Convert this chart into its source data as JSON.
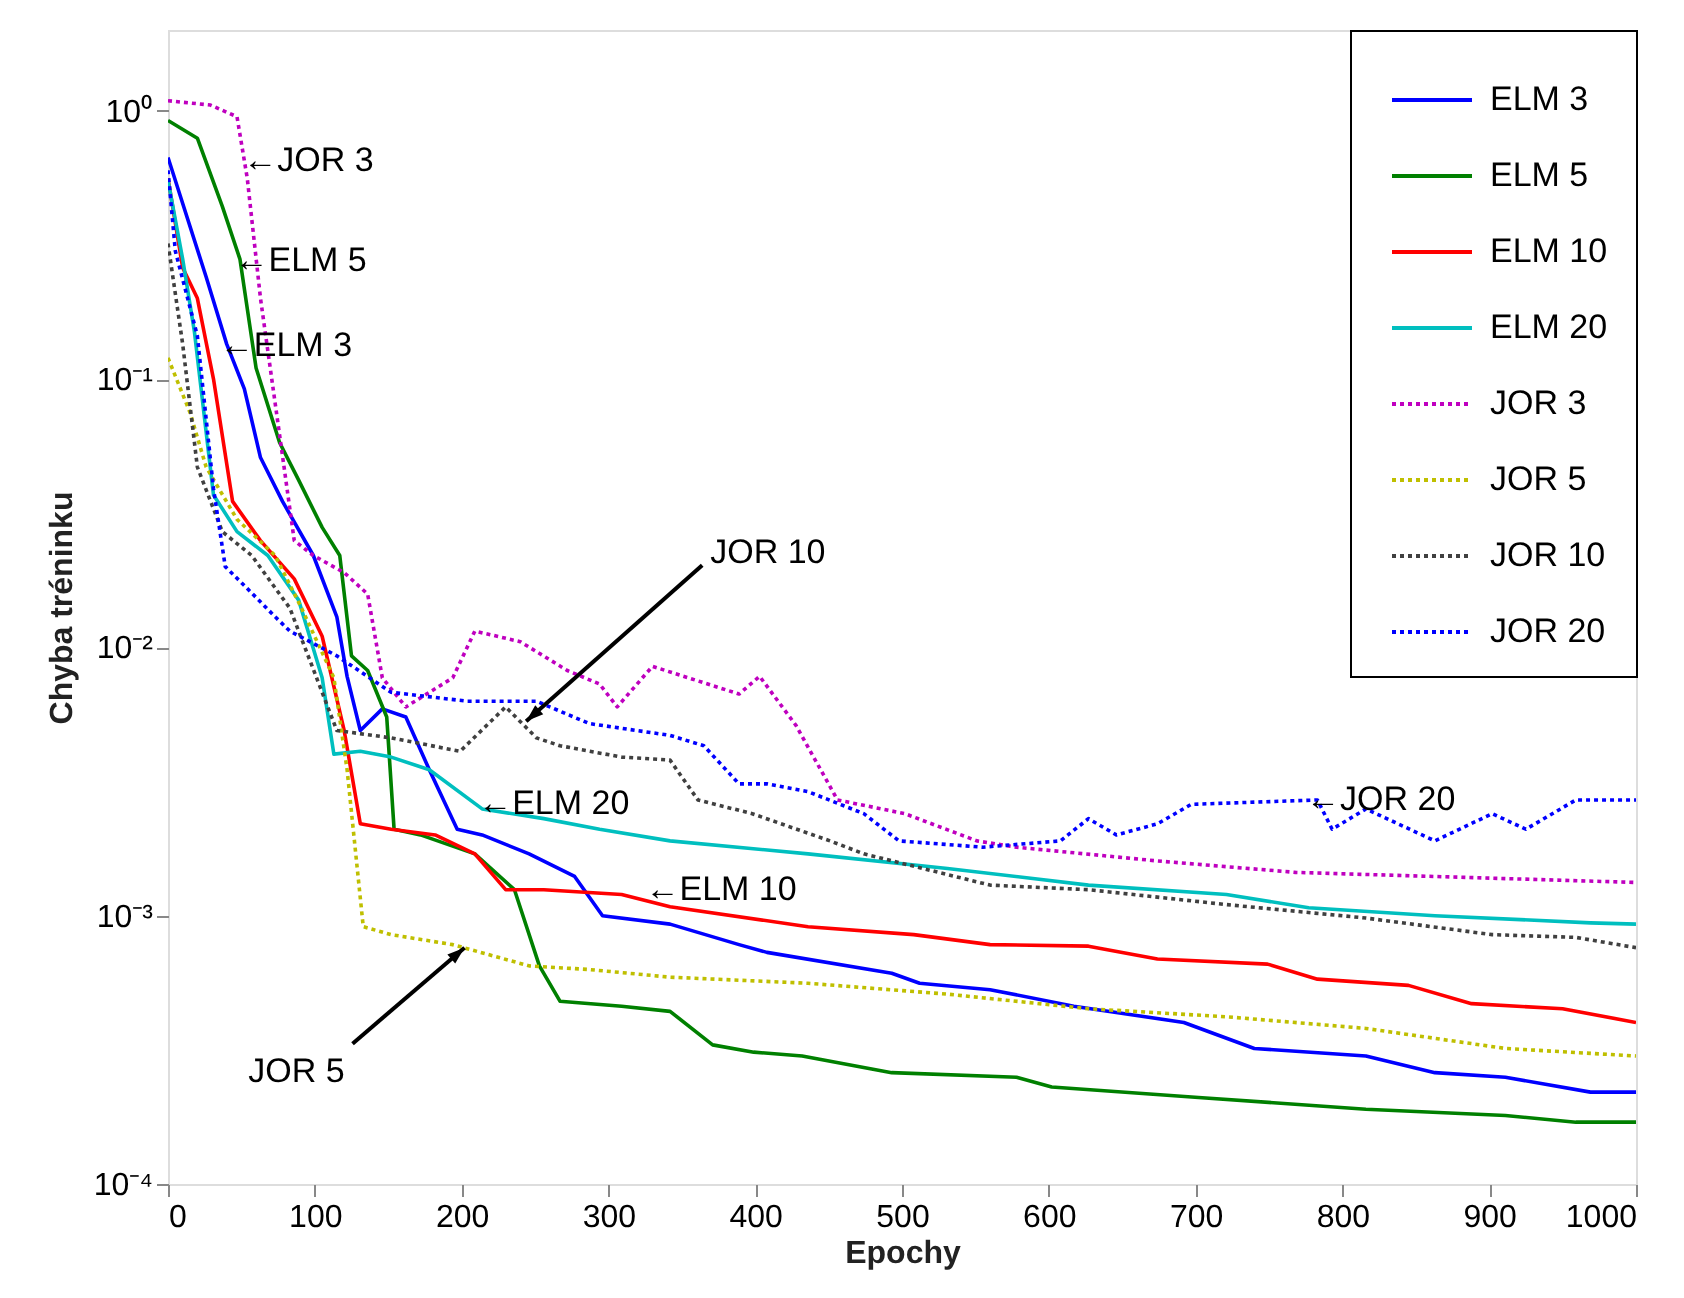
{
  "chart_data": {
    "type": "line",
    "xlabel": "Epochy",
    "ylabel": "Chyba tréninku",
    "xlim": [
      0,
      1000
    ],
    "xticks": [
      0,
      100,
      200,
      300,
      400,
      500,
      600,
      700,
      800,
      900,
      {
        "value": 1000,
        "label": "1000"
      }
    ],
    "ylim": [
      0.0001,
      2
    ],
    "log": true,
    "yticks": [
      {
        "value": 0.0001,
        "label": "10⁻⁴"
      },
      {
        "value": 0.001,
        "label": "10⁻³"
      },
      {
        "value": 0.01,
        "label": "10⁻²"
      },
      {
        "value": 0.1,
        "label": "10⁻¹"
      },
      {
        "value": 1,
        "label": "10⁰"
      }
    ],
    "legend": "top right",
    "grid": false,
    "series": [
      {
        "name": "ELM 3",
        "color": "#0000ff",
        "line_style": "solid",
        "x": [
          0,
          26,
          40,
          52,
          63,
          78,
          99,
          115,
          122,
          131,
          146,
          162,
          178,
          197,
          214,
          246,
          277,
          296,
          342,
          389,
          408,
          493,
          512,
          560,
          617,
          692,
          740,
          816,
          863,
          911,
          969,
          1000
        ],
        "values": [
          0.67,
          0.24,
          0.135,
          0.092,
          0.051,
          0.035,
          0.022,
          0.013,
          0.0078,
          0.0049,
          0.0059,
          0.0055,
          0.0035,
          0.0021,
          0.002,
          0.0017,
          0.0014,
          0.001,
          0.00093,
          0.00078,
          0.00073,
          0.00061,
          0.00056,
          0.00053,
          0.00046,
          0.0004,
          0.00032,
          0.0003,
          0.00026,
          0.00025,
          0.00022,
          0.00022
        ]
      },
      {
        "name": "ELM 5",
        "color": "#008000",
        "line_style": "solid",
        "x": [
          0,
          20,
          37,
          49,
          60,
          76,
          89,
          105,
          117,
          125,
          136,
          149,
          154,
          172,
          209,
          236,
          253,
          267,
          309,
          342,
          371,
          399,
          432,
          493,
          578,
          602,
          702,
          816,
          911,
          959,
          1000
        ],
        "values": [
          0.92,
          0.79,
          0.44,
          0.28,
          0.11,
          0.058,
          0.042,
          0.028,
          0.022,
          0.0093,
          0.0082,
          0.0055,
          0.0021,
          0.002,
          0.0017,
          0.00125,
          0.00065,
          0.00048,
          0.00046,
          0.00044,
          0.00033,
          0.00031,
          0.0003,
          0.00026,
          0.00025,
          0.00023,
          0.00021,
          0.00019,
          0.00018,
          0.00017,
          0.00017
        ]
      },
      {
        "name": "ELM 10",
        "color": "#ff0000",
        "line_style": "solid",
        "x": [
          0,
          10,
          20,
          31,
          44,
          63,
          86,
          105,
          120,
          131,
          152,
          182,
          209,
          230,
          256,
          309,
          342,
          436,
          508,
          560,
          627,
          674,
          749,
          783,
          845,
          888,
          950,
          1000
        ],
        "values": [
          0.56,
          0.26,
          0.2,
          0.1,
          0.035,
          0.025,
          0.018,
          0.011,
          0.0049,
          0.0022,
          0.0021,
          0.002,
          0.0017,
          0.00125,
          0.00125,
          0.0012,
          0.00108,
          0.00091,
          0.00085,
          0.00078,
          0.00077,
          0.00069,
          0.00066,
          0.00058,
          0.00055,
          0.00047,
          0.00045,
          0.0004
        ]
      },
      {
        "name": "ELM 20",
        "color": "#00bfbf",
        "line_style": "solid",
        "x": [
          0,
          10,
          18,
          31,
          47,
          68,
          89,
          105,
          113,
          131,
          152,
          178,
          214,
          256,
          294,
          342,
          436,
          531,
          627,
          721,
          777,
          863,
          969,
          1000
        ],
        "values": [
          0.55,
          0.28,
          0.15,
          0.037,
          0.027,
          0.022,
          0.015,
          0.0077,
          0.004,
          0.0041,
          0.0039,
          0.0035,
          0.0025,
          0.0023,
          0.0021,
          0.0019,
          0.0017,
          0.0015,
          0.0013,
          0.0012,
          0.00107,
          0.001,
          0.00094,
          0.00093
        ]
      },
      {
        "name": "JOR 3",
        "color": "#bf00bf",
        "line_style": "dotted",
        "x": [
          0,
          29,
          47,
          54,
          63,
          76,
          86,
          99,
          120,
          136,
          146,
          162,
          194,
          209,
          240,
          272,
          294,
          306,
          330,
          389,
          403,
          428,
          456,
          502,
          551,
          578,
          674,
          768,
          863,
          1000
        ],
        "values": [
          1.09,
          1.05,
          0.95,
          0.56,
          0.2,
          0.062,
          0.025,
          0.022,
          0.019,
          0.0158,
          0.0077,
          0.006,
          0.0077,
          0.0115,
          0.0105,
          0.0082,
          0.0073,
          0.006,
          0.0085,
          0.0067,
          0.0078,
          0.0051,
          0.0027,
          0.0024,
          0.0019,
          0.0018,
          0.0016,
          0.00145,
          0.0014,
          0.00133
        ]
      },
      {
        "name": "JOR 5",
        "color": "#bfbf00",
        "line_style": "dotted",
        "x": [
          0,
          15,
          26,
          47,
          73,
          91,
          113,
          122,
          133,
          152,
          194,
          246,
          287,
          342,
          436,
          531,
          627,
          721,
          816,
          911,
          1000
        ],
        "values": [
          0.12,
          0.075,
          0.047,
          0.03,
          0.022,
          0.014,
          0.0077,
          0.0035,
          0.00091,
          0.00085,
          0.00078,
          0.00065,
          0.00063,
          0.00059,
          0.00056,
          0.00051,
          0.00045,
          0.00042,
          0.00038,
          0.00032,
          0.0003
        ]
      },
      {
        "name": "JOR 10",
        "color": "#404040",
        "line_style": "dotted",
        "x": [
          0,
          10,
          20,
          37,
          57,
          83,
          105,
          115,
          152,
          199,
          230,
          251,
          267,
          309,
          342,
          361,
          398,
          451,
          474,
          560,
          627,
          721,
          816,
          902,
          959,
          1000
        ],
        "values": [
          0.32,
          0.135,
          0.047,
          0.027,
          0.022,
          0.014,
          0.0068,
          0.0049,
          0.0046,
          0.0041,
          0.006,
          0.0046,
          0.0043,
          0.0039,
          0.0038,
          0.0027,
          0.0024,
          0.0019,
          0.0017,
          0.0013,
          0.00125,
          0.0011,
          0.00098,
          0.00085,
          0.00083,
          0.00076
        ]
      },
      {
        "name": "JOR 20",
        "color": "#0000ff",
        "line_style": "dotted",
        "x": [
          0,
          5,
          20,
          31,
          39,
          52,
          73,
          83,
          115,
          152,
          204,
          251,
          287,
          342,
          365,
          389,
          408,
          436,
          474,
          498,
          555,
          608,
          627,
          646,
          674,
          697,
          783,
          793,
          816,
          863,
          902,
          925,
          959,
          1000
        ],
        "values": [
          0.6,
          0.3,
          0.145,
          0.039,
          0.02,
          0.017,
          0.013,
          0.0115,
          0.0093,
          0.0068,
          0.0063,
          0.0063,
          0.0052,
          0.0047,
          0.0043,
          0.0031,
          0.0031,
          0.0029,
          0.0024,
          0.0019,
          0.0018,
          0.0019,
          0.0023,
          0.002,
          0.0022,
          0.0026,
          0.0027,
          0.0021,
          0.0025,
          0.0019,
          0.0024,
          0.0021,
          0.0027,
          0.0027
        ]
      }
    ],
    "annotations": [
      {
        "text": "←JOR 3",
        "x": 54,
        "y": 0.65
      },
      {
        "text": "←ELM 5",
        "x": 48,
        "y": 0.276
      },
      {
        "text": "←ELM 3",
        "x": 38,
        "y": 0.133
      },
      {
        "text": "JOR 10",
        "x": 244,
        "y": 0.0053
      },
      {
        "text": "←ELM 20",
        "x": 214,
        "y": 0.0026
      },
      {
        "text": "←ELM 10",
        "x": 328,
        "y": 0.00125
      },
      {
        "text": "JOR 5",
        "x": 202,
        "y": 0.00076
      },
      {
        "text": "←JOR 20",
        "x": 778,
        "y": 0.0027
      }
    ]
  }
}
